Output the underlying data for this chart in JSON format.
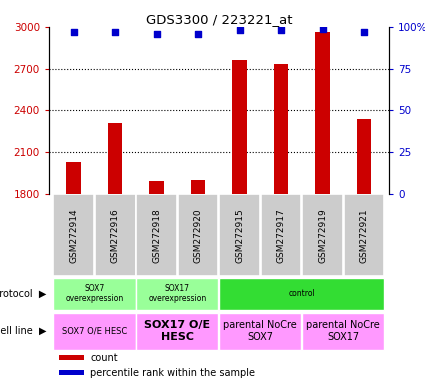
{
  "title": "GDS3300 / 223221_at",
  "samples": [
    "GSM272914",
    "GSM272916",
    "GSM272918",
    "GSM272920",
    "GSM272915",
    "GSM272917",
    "GSM272919",
    "GSM272921"
  ],
  "counts": [
    2030,
    2310,
    1890,
    1900,
    2760,
    2730,
    2960,
    2340
  ],
  "percentiles": [
    97,
    97,
    96,
    96,
    98,
    98,
    99,
    97
  ],
  "ylim_left": [
    1800,
    3000
  ],
  "ylim_right": [
    0,
    100
  ],
  "yticks_left": [
    1800,
    2100,
    2400,
    2700,
    3000
  ],
  "ytick_labels_left": [
    "1800",
    "2100",
    "2400",
    "2700",
    "3000"
  ],
  "yticks_right": [
    0,
    25,
    50,
    75,
    100
  ],
  "ytick_labels_right": [
    "0",
    "25",
    "50",
    "75",
    "100%"
  ],
  "bar_color": "#cc0000",
  "dot_color": "#0000cc",
  "protocol_labels": [
    {
      "text": "SOX7\noverexpression",
      "cols": [
        0,
        1
      ],
      "color": "#99ff99"
    },
    {
      "text": "SOX17\noverexpression",
      "cols": [
        2,
        3
      ],
      "color": "#99ff99"
    },
    {
      "text": "control",
      "cols": [
        4,
        5,
        6,
        7
      ],
      "color": "#33dd33"
    }
  ],
  "cellline_labels": [
    {
      "text": "SOX7 O/E HESC",
      "cols": [
        0,
        1
      ],
      "color": "#ff99ff",
      "fontsize": 6,
      "bold": false
    },
    {
      "text": "SOX17 O/E\nHESC",
      "cols": [
        2,
        3
      ],
      "color": "#ff99ff",
      "fontsize": 8,
      "bold": true
    },
    {
      "text": "parental NoCre\nSOX7",
      "cols": [
        4,
        5
      ],
      "color": "#ff99ff",
      "fontsize": 7,
      "bold": false
    },
    {
      "text": "parental NoCre\nSOX17",
      "cols": [
        6,
        7
      ],
      "color": "#ff99ff",
      "fontsize": 7,
      "bold": false
    }
  ],
  "legend_items": [
    {
      "color": "#cc0000",
      "label": "count"
    },
    {
      "color": "#0000cc",
      "label": "percentile rank within the sample"
    }
  ],
  "background_color": "#ffffff",
  "tick_color_left": "#cc0000",
  "tick_color_right": "#0000cc",
  "sample_bg_color": "#cccccc",
  "bar_width": 0.35
}
